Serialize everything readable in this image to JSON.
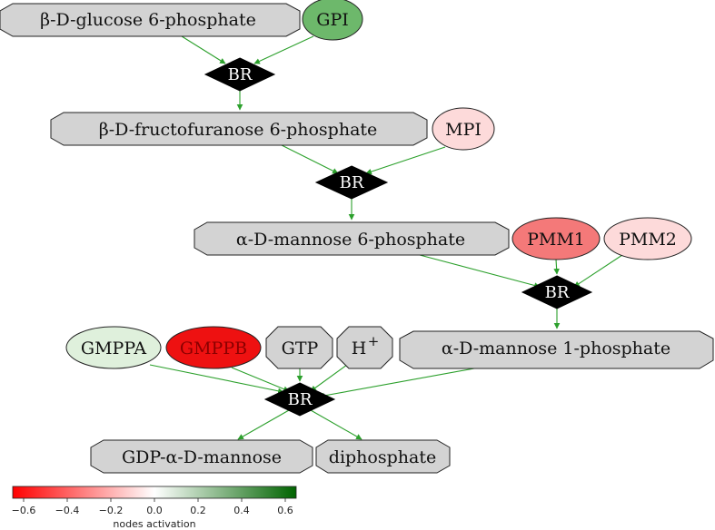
{
  "nodes": {
    "bdg6p": {
      "label": "β-D-glucose 6-phosphate",
      "fill": "#d3d3d3"
    },
    "gpi": {
      "label": "GPI",
      "fill": "#6db86b"
    },
    "br1": {
      "label": "BR"
    },
    "bdf6p": {
      "label": "β-D-fructofuranose 6-phosphate",
      "fill": "#d3d3d3"
    },
    "mpi": {
      "label": "MPI",
      "fill": "#fddada"
    },
    "br2": {
      "label": "BR"
    },
    "adm6p": {
      "label": "α-D-mannose 6-phosphate",
      "fill": "#d3d3d3"
    },
    "pmm1": {
      "label": "PMM1",
      "fill": "#f47979"
    },
    "pmm2": {
      "label": "PMM2",
      "fill": "#fddada"
    },
    "br3": {
      "label": "BR"
    },
    "gmppa": {
      "label": "GMPPA",
      "fill": "#dff0dc"
    },
    "gmppb": {
      "label": "GMPPB",
      "fill": "#ee1111",
      "text_color": "#8b0000"
    },
    "gtp": {
      "label": "GTP",
      "fill": "#d3d3d3"
    },
    "hplus": {
      "label": "H",
      "superscript": "+",
      "fill": "#d3d3d3"
    },
    "adm1p": {
      "label": "α-D-mannose 1-phosphate",
      "fill": "#d3d3d3"
    },
    "br4": {
      "label": "BR"
    },
    "gdpman": {
      "label": "GDP-α-D-mannose",
      "fill": "#d3d3d3"
    },
    "diphos": {
      "label": "diphosphate",
      "fill": "#d3d3d3"
    }
  },
  "edges": [
    [
      "bdg6p",
      "br1"
    ],
    [
      "gpi",
      "br1"
    ],
    [
      "br1",
      "bdf6p"
    ],
    [
      "bdf6p",
      "br2"
    ],
    [
      "mpi",
      "br2"
    ],
    [
      "br2",
      "adm6p"
    ],
    [
      "adm6p",
      "br3"
    ],
    [
      "pmm1",
      "br3"
    ],
    [
      "pmm2",
      "br3"
    ],
    [
      "br3",
      "adm1p"
    ],
    [
      "gmppa",
      "br4"
    ],
    [
      "gmppb",
      "br4"
    ],
    [
      "gtp",
      "br4"
    ],
    [
      "hplus",
      "br4"
    ],
    [
      "adm1p",
      "br4"
    ],
    [
      "br4",
      "gdpman"
    ],
    [
      "br4",
      "diphos"
    ]
  ],
  "colorbar": {
    "title": "nodes activation",
    "ticks": [
      "−0.6",
      "−0.4",
      "−0.2",
      "0.0",
      "0.2",
      "0.4",
      "0.6"
    ],
    "range": [
      -0.65,
      0.65
    ],
    "colors": {
      "negative": "#ff0000",
      "zero": "#ffffff",
      "positive": "#006400"
    }
  },
  "edge_color": "#2ca02c"
}
